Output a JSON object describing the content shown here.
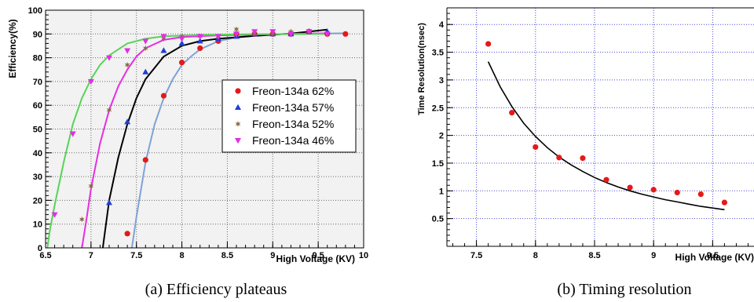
{
  "chart_data": [
    {
      "type": "scatter",
      "caption": "(a) Efficiency plateaus",
      "xlabel": "High Voltage (KV)",
      "ylabel": "Efficiency(%)",
      "xlim": [
        6.5,
        10
      ],
      "ylim": [
        0,
        100
      ],
      "x_ticks": [
        "6.5",
        "7",
        "7.5",
        "8",
        "8.5",
        "9",
        "9.5",
        "10"
      ],
      "y_ticks": [
        "0",
        "10",
        "20",
        "30",
        "40",
        "50",
        "60",
        "70",
        "80",
        "90",
        "100"
      ],
      "grid": true,
      "legend_position": "right-middle",
      "colors": {
        "plot_bg": "#f2f2f2",
        "grid": "#6c6c6c"
      },
      "series": [
        {
          "name": "Freon-134a  62%",
          "marker": "circle",
          "marker_color": "#e41a1a",
          "fit_color": "#7fa2d6",
          "x": [
            7.4,
            7.6,
            7.8,
            8.0,
            8.2,
            8.4,
            8.6,
            8.8,
            9.0,
            9.2,
            9.4,
            9.6,
            9.8
          ],
          "y": [
            6,
            37,
            64,
            78,
            84,
            87,
            90,
            90,
            90,
            90,
            91,
            90,
            90
          ],
          "fit": [
            [
              7.45,
              0
            ],
            [
              7.5,
              13
            ],
            [
              7.6,
              36
            ],
            [
              7.7,
              52
            ],
            [
              7.8,
              63
            ],
            [
              7.9,
              71
            ],
            [
              8.0,
              77
            ],
            [
              8.1,
              80.5
            ],
            [
              8.2,
              83.5
            ],
            [
              8.4,
              87
            ],
            [
              8.6,
              88.5
            ],
            [
              8.8,
              89.3
            ],
            [
              9.0,
              89.8
            ],
            [
              9.4,
              90.1
            ],
            [
              9.8,
              90.3
            ]
          ]
        },
        {
          "name": "Freon-134a  57%",
          "marker": "triangle-up",
          "marker_color": "#1f3fd8",
          "fit_color": "#000000",
          "x": [
            7.2,
            7.4,
            7.6,
            7.8,
            8.0,
            8.2,
            8.4,
            8.6,
            8.8,
            9.0,
            9.2,
            9.4,
            9.6
          ],
          "y": [
            19,
            53,
            74,
            83,
            86,
            87,
            88,
            89,
            90,
            90,
            90,
            91,
            91
          ],
          "fit": [
            [
              7.13,
              0
            ],
            [
              7.2,
              20
            ],
            [
              7.3,
              38
            ],
            [
              7.4,
              52
            ],
            [
              7.5,
              63
            ],
            [
              7.6,
              71
            ],
            [
              7.8,
              80.5
            ],
            [
              8.0,
              85
            ],
            [
              8.2,
              87
            ],
            [
              8.4,
              88
            ],
            [
              8.8,
              89.2
            ],
            [
              9.2,
              90.2
            ],
            [
              9.6,
              91.8
            ]
          ]
        },
        {
          "name": "Freon-134a  52%",
          "marker": "star",
          "marker_color": "#8b6a45",
          "fit_color": "#e62ee0",
          "x": [
            6.9,
            7.0,
            7.2,
            7.4,
            7.6,
            7.8,
            8.0,
            8.2,
            8.4,
            8.6,
            8.8,
            9.0,
            9.2,
            9.4
          ],
          "y": [
            12,
            26,
            58,
            77,
            84,
            88,
            89,
            89,
            89,
            92,
            90,
            90,
            91,
            91
          ],
          "fit": [
            [
              6.9,
              0
            ],
            [
              6.95,
              12
            ],
            [
              7.0,
              25
            ],
            [
              7.1,
              44
            ],
            [
              7.2,
              58
            ],
            [
              7.3,
              68
            ],
            [
              7.4,
              75
            ],
            [
              7.5,
              80.5
            ],
            [
              7.6,
              84
            ],
            [
              7.8,
              87.5
            ],
            [
              8.0,
              88.7
            ],
            [
              8.4,
              89.4
            ],
            [
              9.0,
              89.9
            ],
            [
              9.6,
              90.3
            ]
          ]
        },
        {
          "name": "Freon-134a  46%",
          "marker": "triangle-down",
          "marker_color": "#e32ee6",
          "fit_color": "#57d357",
          "x": [
            6.6,
            6.8,
            7.0,
            7.2,
            7.4,
            7.6,
            7.8,
            8.0,
            8.2,
            8.4,
            8.6,
            8.8,
            9.0,
            9.2,
            9.4,
            9.6
          ],
          "y": [
            14,
            48,
            70,
            80,
            83,
            87,
            89,
            88,
            89,
            89,
            90,
            91,
            91,
            90,
            91,
            90
          ],
          "fit": [
            [
              6.52,
              0
            ],
            [
              6.55,
              8
            ],
            [
              6.6,
              18
            ],
            [
              6.7,
              36
            ],
            [
              6.8,
              52
            ],
            [
              6.9,
              63
            ],
            [
              7.0,
              71
            ],
            [
              7.1,
              77
            ],
            [
              7.2,
              81
            ],
            [
              7.4,
              86
            ],
            [
              7.6,
              88
            ],
            [
              7.8,
              89
            ],
            [
              8.2,
              89.6
            ],
            [
              8.8,
              89.9
            ],
            [
              9.6,
              90
            ]
          ]
        }
      ]
    },
    {
      "type": "scatter",
      "caption": "(b) Timing resolution",
      "xlabel": "High Voltage (KV)",
      "ylabel": "Time Resolution(nsec)",
      "xlim": [
        7.25,
        9.85
      ],
      "ylim": [
        0,
        4.3
      ],
      "x_ticks": [
        "7.5",
        "8",
        "8.5",
        "9",
        "9.5"
      ],
      "y_ticks": [
        "0.5",
        "1",
        "1.5",
        "2",
        "2.5",
        "3",
        "3.5",
        "4"
      ],
      "grid": true,
      "colors": {
        "plot_bg": "#ffffff",
        "grid": "#4a4ad8",
        "marker": "#e41a1a",
        "fit": "#000000"
      },
      "series": [
        {
          "marker": "circle",
          "x": [
            7.6,
            7.8,
            8.0,
            8.2,
            8.4,
            8.6,
            8.8,
            9.0,
            9.2,
            9.4,
            9.6
          ],
          "y": [
            3.65,
            2.41,
            1.79,
            1.6,
            1.59,
            1.2,
            1.06,
            1.02,
            0.97,
            0.94,
            0.79
          ],
          "fit": [
            [
              7.6,
              3.33
            ],
            [
              7.7,
              2.88
            ],
            [
              7.8,
              2.52
            ],
            [
              7.9,
              2.22
            ],
            [
              8.0,
              1.98
            ],
            [
              8.1,
              1.78
            ],
            [
              8.2,
              1.61
            ],
            [
              8.3,
              1.47
            ],
            [
              8.4,
              1.35
            ],
            [
              8.5,
              1.24
            ],
            [
              8.6,
              1.15
            ],
            [
              8.7,
              1.07
            ],
            [
              8.8,
              1.0
            ],
            [
              8.9,
              0.94
            ],
            [
              9.0,
              0.89
            ],
            [
              9.1,
              0.84
            ],
            [
              9.2,
              0.8
            ],
            [
              9.3,
              0.76
            ],
            [
              9.4,
              0.72
            ],
            [
              9.5,
              0.69
            ],
            [
              9.6,
              0.66
            ]
          ]
        }
      ]
    }
  ]
}
